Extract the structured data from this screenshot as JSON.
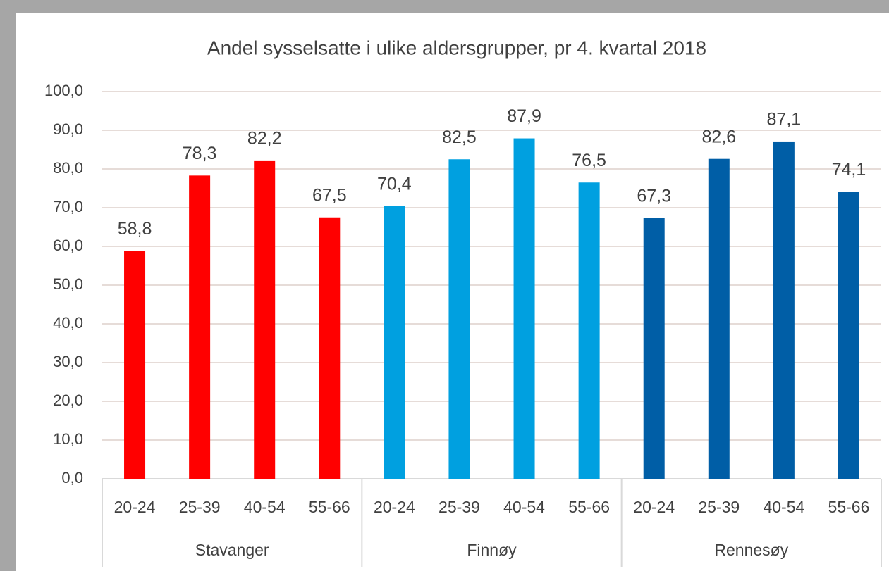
{
  "chart_data": {
    "type": "bar",
    "title": "Andel sysselsatte i ulike aldersgrupper, pr 4. kvartal 2018",
    "categories": [
      "20-24",
      "25-39",
      "40-54",
      "55-66"
    ],
    "series": [
      {
        "name": "Stavanger",
        "color": "#ff0000",
        "values": [
          58.8,
          78.3,
          82.2,
          67.5
        ],
        "value_labels": [
          "58,8",
          "78,3",
          "82,2",
          "67,5"
        ]
      },
      {
        "name": "Finnøy",
        "color": "#00a0e0",
        "values": [
          70.4,
          82.5,
          87.9,
          76.5
        ],
        "value_labels": [
          "70,4",
          "82,5",
          "87,9",
          "76,5"
        ]
      },
      {
        "name": "Rennesøy",
        "color": "#005ea6",
        "values": [
          67.3,
          82.6,
          87.1,
          74.1
        ],
        "value_labels": [
          "67,3",
          "82,6",
          "87,1",
          "74,1"
        ]
      }
    ],
    "ylim": [
      0,
      100
    ],
    "yticks": [
      {
        "value": 0,
        "label": "0,0"
      },
      {
        "value": 10,
        "label": "10,0"
      },
      {
        "value": 20,
        "label": "20,0"
      },
      {
        "value": 30,
        "label": "30,0"
      },
      {
        "value": 40,
        "label": "40,0"
      },
      {
        "value": 50,
        "label": "50,0"
      },
      {
        "value": 60,
        "label": "60,0"
      },
      {
        "value": 70,
        "label": "70,0"
      },
      {
        "value": 80,
        "label": "80,0"
      },
      {
        "value": 90,
        "label": "90,0"
      },
      {
        "value": 100,
        "label": "100,0"
      }
    ],
    "grid": true
  }
}
